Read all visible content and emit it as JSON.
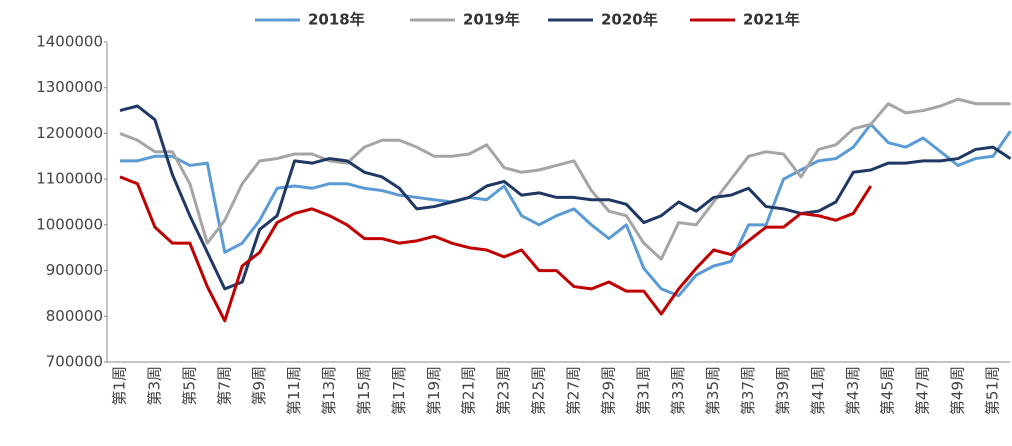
{
  "chart_data": {
    "type": "line",
    "categories": [
      "第1周",
      null,
      "第3周",
      null,
      "第5周",
      null,
      "第7周",
      null,
      "第9周",
      null,
      "第11周",
      null,
      "第13周",
      null,
      "第15周",
      null,
      "第17周",
      null,
      "第19周",
      null,
      "第21周",
      null,
      "第23周",
      null,
      "第25周",
      null,
      "第27周",
      null,
      "第29周",
      null,
      "第31周",
      null,
      "第33周",
      null,
      "第35周",
      null,
      "第37周",
      null,
      "第39周",
      null,
      "第41周",
      null,
      "第43周",
      null,
      "第45周",
      null,
      "第47周",
      null,
      "第49周",
      null,
      "第51周",
      null
    ],
    "series": [
      {
        "name": "2018年",
        "color": "#5b9bd5",
        "values": [
          1140000,
          1140000,
          1150000,
          1150000,
          1130000,
          1135000,
          940000,
          960000,
          1010000,
          1080000,
          1085000,
          1080000,
          1090000,
          1090000,
          1080000,
          1075000,
          1065000,
          1060000,
          1055000,
          1050000,
          1060000,
          1055000,
          1085000,
          1020000,
          1000000,
          1020000,
          1035000,
          1000000,
          970000,
          1000000,
          905000,
          860000,
          845000,
          890000,
          910000,
          920000,
          1000000,
          1000000,
          1100000,
          1120000,
          1140000,
          1145000,
          1170000,
          1220000,
          1180000,
          1170000,
          1190000,
          1160000,
          1130000,
          1145000,
          1150000,
          1205000
        ]
      },
      {
        "name": "2019年",
        "color": "#a5a5a5",
        "values": [
          1200000,
          1185000,
          1160000,
          1160000,
          1090000,
          960000,
          1010000,
          1090000,
          1140000,
          1145000,
          1155000,
          1155000,
          1140000,
          1135000,
          1170000,
          1185000,
          1185000,
          1170000,
          1150000,
          1150000,
          1155000,
          1175000,
          1125000,
          1115000,
          1120000,
          1130000,
          1140000,
          1075000,
          1030000,
          1020000,
          960000,
          925000,
          1005000,
          1000000,
          1050000,
          1100000,
          1150000,
          1160000,
          1155000,
          1105000,
          1165000,
          1175000,
          1210000,
          1220000,
          1265000,
          1245000,
          1250000,
          1260000,
          1275000,
          1265000,
          1265000,
          1265000
        ]
      },
      {
        "name": "2020年",
        "color": "#1f3864",
        "values": [
          1250000,
          1260000,
          1230000,
          1110000,
          1020000,
          940000,
          860000,
          875000,
          990000,
          1020000,
          1140000,
          1135000,
          1145000,
          1140000,
          1115000,
          1105000,
          1080000,
          1035000,
          1040000,
          1050000,
          1060000,
          1085000,
          1095000,
          1065000,
          1070000,
          1060000,
          1060000,
          1055000,
          1055000,
          1045000,
          1005000,
          1020000,
          1050000,
          1030000,
          1060000,
          1065000,
          1080000,
          1040000,
          1035000,
          1025000,
          1030000,
          1050000,
          1115000,
          1120000,
          1135000,
          1135000,
          1140000,
          1140000,
          1145000,
          1165000,
          1170000,
          1145000
        ]
      },
      {
        "name": "2021年",
        "color": "#c00000",
        "values": [
          1105000,
          1090000,
          995000,
          960000,
          960000,
          865000,
          790000,
          910000,
          940000,
          1005000,
          1025000,
          1035000,
          1020000,
          1000000,
          970000,
          970000,
          960000,
          965000,
          975000,
          960000,
          950000,
          945000,
          930000,
          945000,
          900000,
          900000,
          865000,
          860000,
          875000,
          855000,
          855000,
          805000,
          860000,
          905000,
          945000,
          935000,
          965000,
          995000,
          995000,
          1025000,
          1020000,
          1010000,
          1025000,
          1085000,
          null,
          null,
          null,
          null,
          null,
          null,
          null,
          null
        ]
      }
    ],
    "ylim": [
      700000,
      1400000
    ],
    "yticks": [
      700000,
      800000,
      900000,
      1000000,
      1100000,
      1200000,
      1300000,
      1400000
    ],
    "grid": false,
    "legend": "top"
  }
}
